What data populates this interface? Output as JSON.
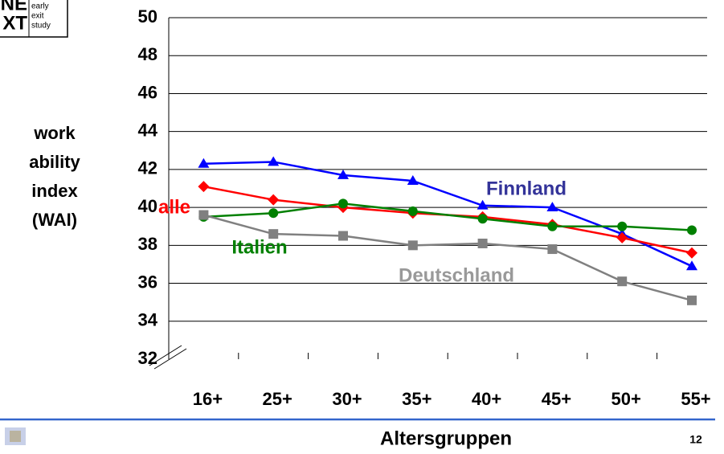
{
  "logo": {
    "big": [
      "NE",
      "XT"
    ],
    "small": [
      "early",
      "exit",
      "study"
    ]
  },
  "page_number": "12",
  "chart_data": {
    "type": "line",
    "ylabel": [
      "work",
      "ability",
      "index",
      "(WAI)"
    ],
    "xlabel": "Altersgruppen",
    "categories": [
      "16+",
      "25+",
      "30+",
      "35+",
      "40+",
      "45+",
      "50+",
      "55+"
    ],
    "ylim": [
      32,
      50
    ],
    "yticks": [
      32,
      34,
      36,
      38,
      40,
      42,
      44,
      46,
      48,
      50
    ],
    "grid": true,
    "series": [
      {
        "name": "Finnland",
        "color": "#0000ff",
        "label_color": "#333399",
        "marker": "triangle",
        "values": [
          42.3,
          42.4,
          41.7,
          41.4,
          40.1,
          40.0,
          38.6,
          36.9
        ]
      },
      {
        "name": "alle",
        "color": "#ff0000",
        "label_color": "#ff0000",
        "marker": "diamond",
        "values": [
          41.1,
          40.4,
          40.0,
          39.7,
          39.5,
          39.1,
          38.4,
          37.6
        ]
      },
      {
        "name": "Italien",
        "color": "#008000",
        "label_color": "#008000",
        "marker": "circle",
        "values": [
          39.5,
          39.7,
          40.2,
          39.8,
          39.4,
          39.0,
          39.0,
          38.8
        ]
      },
      {
        "name": "Deutschland",
        "color": "#808080",
        "label_color": "#999999",
        "marker": "square",
        "values": [
          39.6,
          38.6,
          38.5,
          38.0,
          38.1,
          37.8,
          36.1,
          35.1
        ]
      }
    ]
  }
}
